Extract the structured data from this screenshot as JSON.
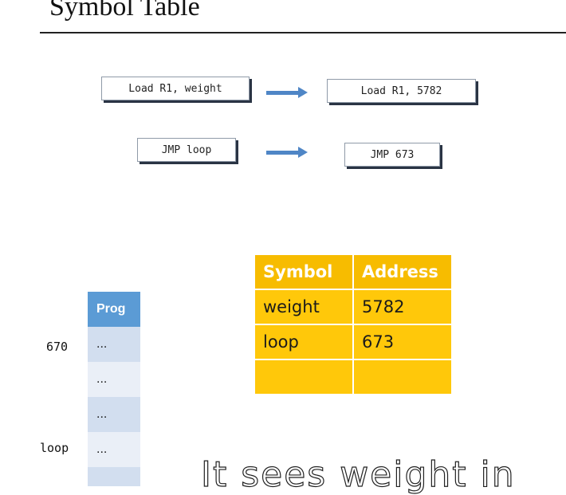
{
  "slide": {
    "title": "Symbol Table"
  },
  "translations": [
    {
      "source": "Load R1, weight",
      "target": "Load R1, 5782"
    },
    {
      "source": "JMP loop",
      "target": "JMP 673"
    }
  ],
  "symbol_table": {
    "headers": [
      "Symbol",
      "Address"
    ],
    "rows": [
      [
        "weight",
        "5782"
      ],
      [
        "loop",
        "673"
      ],
      [
        "",
        ""
      ]
    ]
  },
  "program": {
    "header": "Prog",
    "cells": [
      "...",
      "...",
      "...",
      "...",
      ""
    ],
    "labels": [
      "670",
      "loop"
    ]
  },
  "caption": "It sees weight in",
  "colors": {
    "arrow": "#4f86c6",
    "table_header": "#f7bc00",
    "table_body": "#ffc80a",
    "prog_header": "#5b9bd5"
  }
}
